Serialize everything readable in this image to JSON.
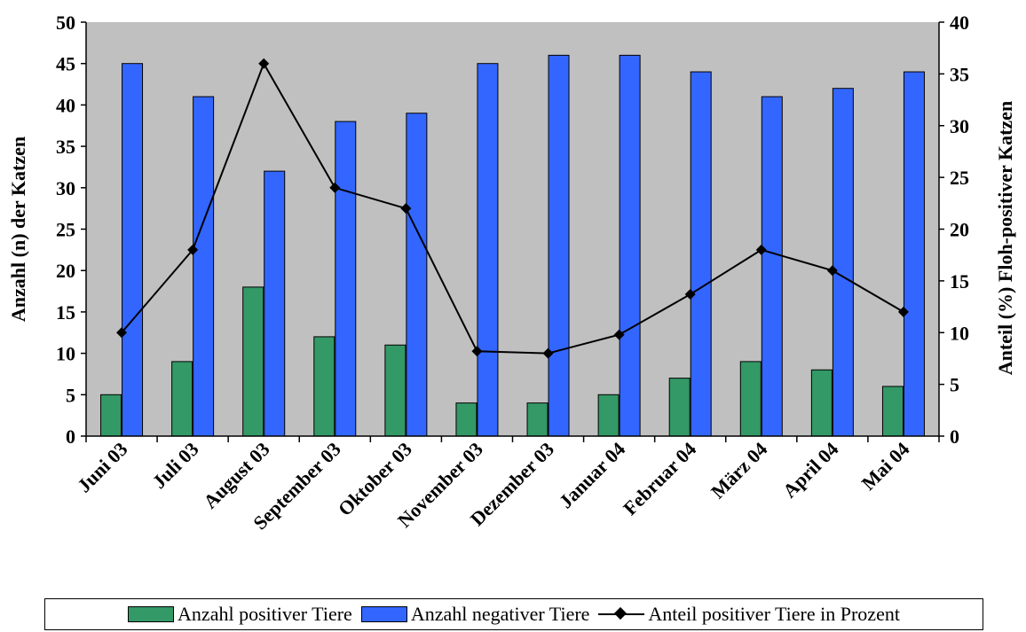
{
  "chart_data": {
    "type": "bar",
    "categories": [
      "Juni 03",
      "Juli 03",
      "August 03",
      "September 03",
      "Oktober 03",
      "November 03",
      "Dezember 03",
      "Januar 04",
      "Februar 04",
      "März 04",
      "April 04",
      "Mai 04"
    ],
    "series": [
      {
        "name": "Anzahl positiver Tiere",
        "type": "bar",
        "axis": "left",
        "color": "#339966",
        "values": [
          5,
          9,
          18,
          12,
          11,
          4,
          4,
          5,
          7,
          9,
          8,
          6
        ]
      },
      {
        "name": "Anzahl negativer Tiere",
        "type": "bar",
        "axis": "left",
        "color": "#3366FF",
        "values": [
          45,
          41,
          32,
          38,
          39,
          45,
          46,
          46,
          44,
          41,
          42,
          44
        ]
      },
      {
        "name": "Anteil positiver Tiere in Prozent",
        "type": "line",
        "axis": "right",
        "color": "#000000",
        "values": [
          10,
          18,
          36,
          24,
          22,
          8.2,
          8,
          9.8,
          13.7,
          18,
          16,
          12
        ]
      }
    ],
    "ylabel": "Anzahl (n) der Katzen",
    "y2label": "Anteil (%) Floh-positiver Katzen",
    "ylim": [
      0,
      50
    ],
    "y2lim": [
      0,
      40
    ],
    "yticks": [
      "0",
      "5",
      "10",
      "15",
      "20",
      "25",
      "30",
      "35",
      "40",
      "45",
      "50"
    ],
    "y2ticks": [
      "0",
      "5",
      "10",
      "15",
      "20",
      "25",
      "30",
      "35",
      "40"
    ],
    "plot_background": "#C0C0C0",
    "grid": false,
    "legend_position": "bottom"
  }
}
